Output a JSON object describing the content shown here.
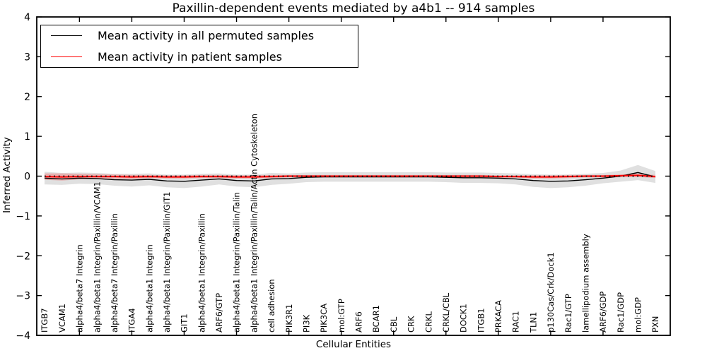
{
  "figure": {
    "title": "Paxillin-dependent events mediated by a4b1 -- 914 samples",
    "xlabel": "Cellular Entities",
    "ylabel": "Inferred Activity"
  },
  "legend": {
    "entries": [
      {
        "label": "Mean activity in all permuted samples",
        "color": "#000000"
      },
      {
        "label": "Mean activity in patient samples",
        "color": "#ff0000"
      }
    ],
    "position": "upper left"
  },
  "chart_data": {
    "type": "line",
    "title": "Paxillin-dependent events mediated by a4b1 -- 914 samples",
    "xlabel": "Cellular Entities",
    "ylabel": "Inferred Activity",
    "ylim": [
      -4,
      4
    ],
    "yticks": [
      4,
      3,
      2,
      1,
      0,
      -1,
      -2,
      -3,
      -4
    ],
    "grid": false,
    "legend_position": "upper left",
    "zero_line": {
      "y": 0,
      "style": "dotted",
      "color": "#000000"
    },
    "categories": [
      "ITGB7",
      "VCAM1",
      "alpha4/beta7 Integrin",
      "alpha4/beta1 Integrin/Paxillin/VCAM1",
      "alpha4/beta7 Integrin/Paxillin",
      "ITGA4",
      "alpha4/beta1 Integrin",
      "alpha4/beta1 Integrin/Paxillin/GIT1",
      "GIT1",
      "alpha4/beta1 Integrin/Paxillin",
      "ARF6/GTP",
      "alpha4/beta1 Integrin/Paxillin/Talin",
      "alpha4/beta1 Integrin/Paxillin/Talin/Actin Cytoskeleton",
      "cell adhesion",
      "PIK3R1",
      "PI3K",
      "PIK3CA",
      "mol:GTP",
      "ARF6",
      "BCAR1",
      "CBL",
      "CRK",
      "CRKL",
      "CRKL/CBL",
      "DOCK1",
      "ITGB1",
      "PRKACA",
      "RAC1",
      "TLN1",
      "p130Cas/Crk/Dock1",
      "Rac1/GTP",
      "lamellipodium assembly",
      "ARF6/GDP",
      "Rac1/GDP",
      "mol:GDP",
      "PXN"
    ],
    "series": [
      {
        "name": "Mean activity in all permuted samples",
        "color": "#000000",
        "band_color": "#000000",
        "band_opacity": 0.12,
        "values": [
          -0.05,
          -0.07,
          -0.05,
          -0.06,
          -0.09,
          -0.1,
          -0.08,
          -0.12,
          -0.13,
          -0.1,
          -0.07,
          -0.11,
          -0.12,
          -0.07,
          -0.06,
          -0.03,
          -0.02,
          -0.02,
          -0.02,
          -0.02,
          -0.02,
          -0.02,
          -0.02,
          -0.03,
          -0.04,
          -0.04,
          -0.05,
          -0.07,
          -0.11,
          -0.13,
          -0.12,
          -0.09,
          -0.05,
          0.0,
          0.09,
          -0.02
        ],
        "band_halfwidth": [
          0.16,
          0.15,
          0.14,
          0.14,
          0.15,
          0.16,
          0.15,
          0.16,
          0.17,
          0.16,
          0.14,
          0.15,
          0.16,
          0.15,
          0.13,
          0.12,
          0.12,
          0.12,
          0.12,
          0.12,
          0.12,
          0.12,
          0.12,
          0.12,
          0.13,
          0.13,
          0.13,
          0.14,
          0.16,
          0.17,
          0.16,
          0.15,
          0.13,
          0.14,
          0.19,
          0.15
        ]
      },
      {
        "name": "Mean activity in patient samples",
        "color": "#ff0000",
        "band_color": "#ff0000",
        "band_opacity": 0.22,
        "values": [
          -0.01,
          -0.02,
          -0.01,
          -0.01,
          -0.01,
          -0.02,
          -0.01,
          -0.02,
          -0.02,
          -0.01,
          -0.01,
          -0.02,
          -0.02,
          -0.01,
          0.0,
          0.0,
          0.0,
          0.0,
          0.0,
          0.0,
          0.0,
          0.0,
          0.0,
          0.0,
          0.0,
          0.0,
          -0.01,
          -0.01,
          -0.02,
          -0.02,
          -0.01,
          0.0,
          0.0,
          0.01,
          0.02,
          -0.01
        ],
        "band_halfwidth": [
          0.08,
          0.09,
          0.07,
          0.06,
          0.05,
          0.05,
          0.04,
          0.04,
          0.04,
          0.04,
          0.04,
          0.04,
          0.04,
          0.04,
          0.03,
          0.03,
          0.03,
          0.03,
          0.03,
          0.03,
          0.03,
          0.03,
          0.03,
          0.03,
          0.03,
          0.03,
          0.03,
          0.03,
          0.04,
          0.04,
          0.04,
          0.03,
          0.03,
          0.03,
          0.04,
          0.04
        ]
      }
    ]
  }
}
